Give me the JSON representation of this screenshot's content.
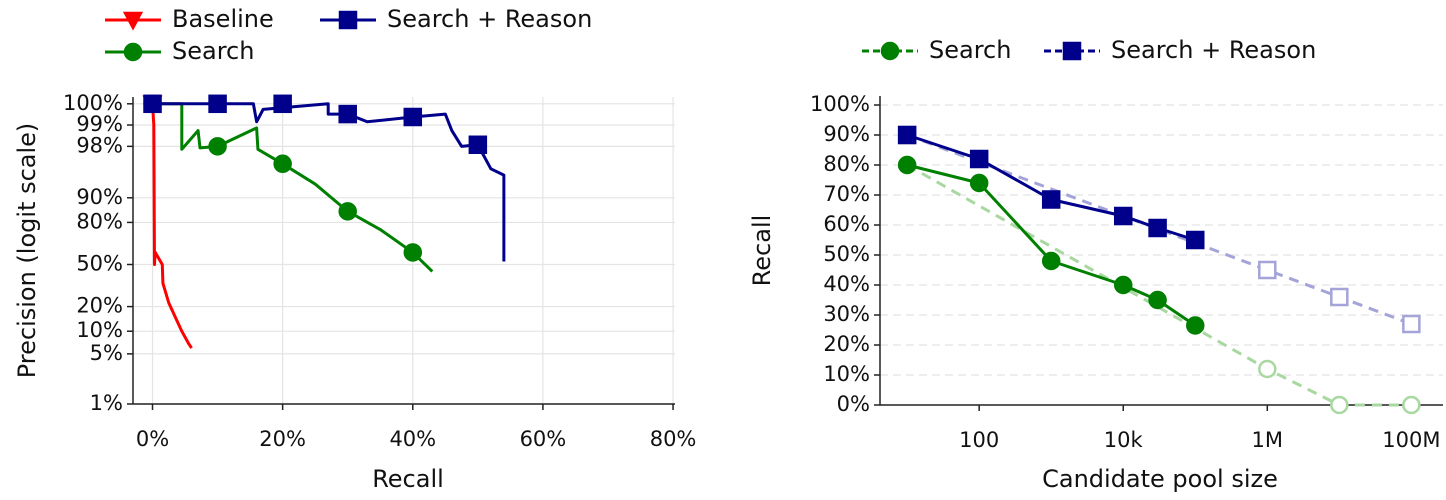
{
  "chart_data": [
    {
      "type": "line",
      "yscale": "logit",
      "xlabel": "Recall",
      "ylabel": "Precision (logit scale)",
      "xlim": [
        -3,
        80.3
      ],
      "ylim": [
        1,
        99.6
      ],
      "xticks": [
        {
          "value": 0,
          "label": "0%"
        },
        {
          "value": 20,
          "label": "20%"
        },
        {
          "value": 40,
          "label": "40%"
        },
        {
          "value": 60,
          "label": "60%"
        },
        {
          "value": 80,
          "label": "80%"
        }
      ],
      "yticks": [
        {
          "value": 1,
          "label": "1%"
        },
        {
          "value": 5,
          "label": "5%"
        },
        {
          "value": 10,
          "label": "10%"
        },
        {
          "value": 20,
          "label": "20%"
        },
        {
          "value": 50,
          "label": "50%"
        },
        {
          "value": 80,
          "label": "80%"
        },
        {
          "value": 90,
          "label": "90%"
        },
        {
          "value": 98,
          "label": "98%"
        },
        {
          "value": 99,
          "label": "99%"
        },
        {
          "value": 99.5,
          "label": "100%"
        }
      ],
      "grid": "both",
      "series": [
        {
          "name": "Baseline",
          "color": "#ff0000",
          "marker": "v",
          "linestyle": "solid",
          "x": [
            0,
            0.2,
            0.3,
            0.4,
            1.5,
            1.6,
            2.5,
            3.5,
            4.5,
            5.5,
            6
          ],
          "values": [
            99.5,
            99,
            50,
            60,
            50,
            35,
            22,
            15,
            10,
            7,
            6
          ],
          "marker_x": [
            0
          ],
          "marker_y": [
            99.5
          ]
        },
        {
          "name": "Search",
          "color": "#008000",
          "marker": "o",
          "linestyle": "solid",
          "x": [
            0,
            4.5,
            4.5,
            7,
            7.3,
            10,
            16,
            16.2,
            20,
            25,
            30,
            35,
            40,
            43
          ],
          "values": [
            99.5,
            99.5,
            97.8,
            98.8,
            97.9,
            98,
            98.9,
            97.8,
            96.5,
            93.4,
            85.2,
            76,
            59.8,
            44.3
          ],
          "marker_x": [
            0,
            10,
            20,
            30,
            40
          ],
          "marker_y": [
            99.5,
            98,
            96.5,
            85.2,
            59.8
          ]
        },
        {
          "name": "Search + Reason",
          "color": "#00008b",
          "marker": "s",
          "linestyle": "solid",
          "x": [
            0,
            15.5,
            16,
            17,
            27,
            27,
            30,
            33,
            40,
            45,
            46,
            47.5,
            50,
            52,
            54,
            54
          ],
          "values": [
            99.5,
            99.5,
            99.1,
            99.4,
            99.5,
            99.3,
            99.3,
            99.1,
            99.23,
            99.3,
            98.8,
            98,
            98.1,
            95.9,
            95,
            52.5
          ],
          "marker_x": [
            0,
            10,
            20,
            30,
            40,
            50
          ],
          "marker_y": [
            99.5,
            99.5,
            99.5,
            99.3,
            99.23,
            98.1
          ]
        }
      ]
    },
    {
      "type": "line",
      "xscale": "log",
      "xlabel": "Candidate pool size",
      "ylabel": "Recall",
      "xlim": [
        4.2,
        275000000
      ],
      "ylim": [
        0,
        103
      ],
      "xticks": [
        100,
        {
          "value": 10000,
          "label": "10k"
        },
        {
          "value": 1000000,
          "label": "1M"
        },
        {
          "value": 100000000,
          "label": "100M"
        }
      ],
      "yticks": [
        {
          "value": 0,
          "label": "0%"
        },
        {
          "value": 10,
          "label": "10%"
        },
        {
          "value": 20,
          "label": "20%"
        },
        {
          "value": 30,
          "label": "30%"
        },
        {
          "value": 40,
          "label": "40%"
        },
        {
          "value": 50,
          "label": "50%"
        },
        {
          "value": 60,
          "label": "60%"
        },
        {
          "value": 70,
          "label": "70%"
        },
        {
          "value": 80,
          "label": "80%"
        },
        {
          "value": 90,
          "label": "90%"
        },
        {
          "value": 100,
          "label": "100%"
        }
      ],
      "grid": "y",
      "series": [
        {
          "color": "#a8d8a0",
          "marker": "o",
          "marker_fill": "none",
          "linestyle": "dashed",
          "x": [
            10,
            1000000,
            10000000,
            100000000
          ],
          "values": [
            80,
            12,
            0,
            0
          ]
        },
        {
          "color": "#a4a4d8",
          "marker": "s",
          "marker_fill": "none",
          "linestyle": "dashed",
          "x": [
            10,
            1000000,
            10000000,
            100000000
          ],
          "values": [
            90,
            45,
            36,
            27
          ]
        },
        {
          "name": "Search",
          "color": "#008000",
          "marker": "o",
          "linestyle": "solid",
          "x": [
            10,
            100,
            1000,
            10000,
            30000,
            100000
          ],
          "values": [
            80,
            74,
            48,
            40,
            35,
            26.5
          ]
        },
        {
          "name": "Search + Reason",
          "color": "#00008b",
          "marker": "s",
          "linestyle": "solid",
          "x": [
            10,
            100,
            1000,
            10000,
            30000,
            100000
          ],
          "values": [
            90,
            82,
            68.5,
            63,
            59,
            55
          ]
        }
      ]
    }
  ]
}
